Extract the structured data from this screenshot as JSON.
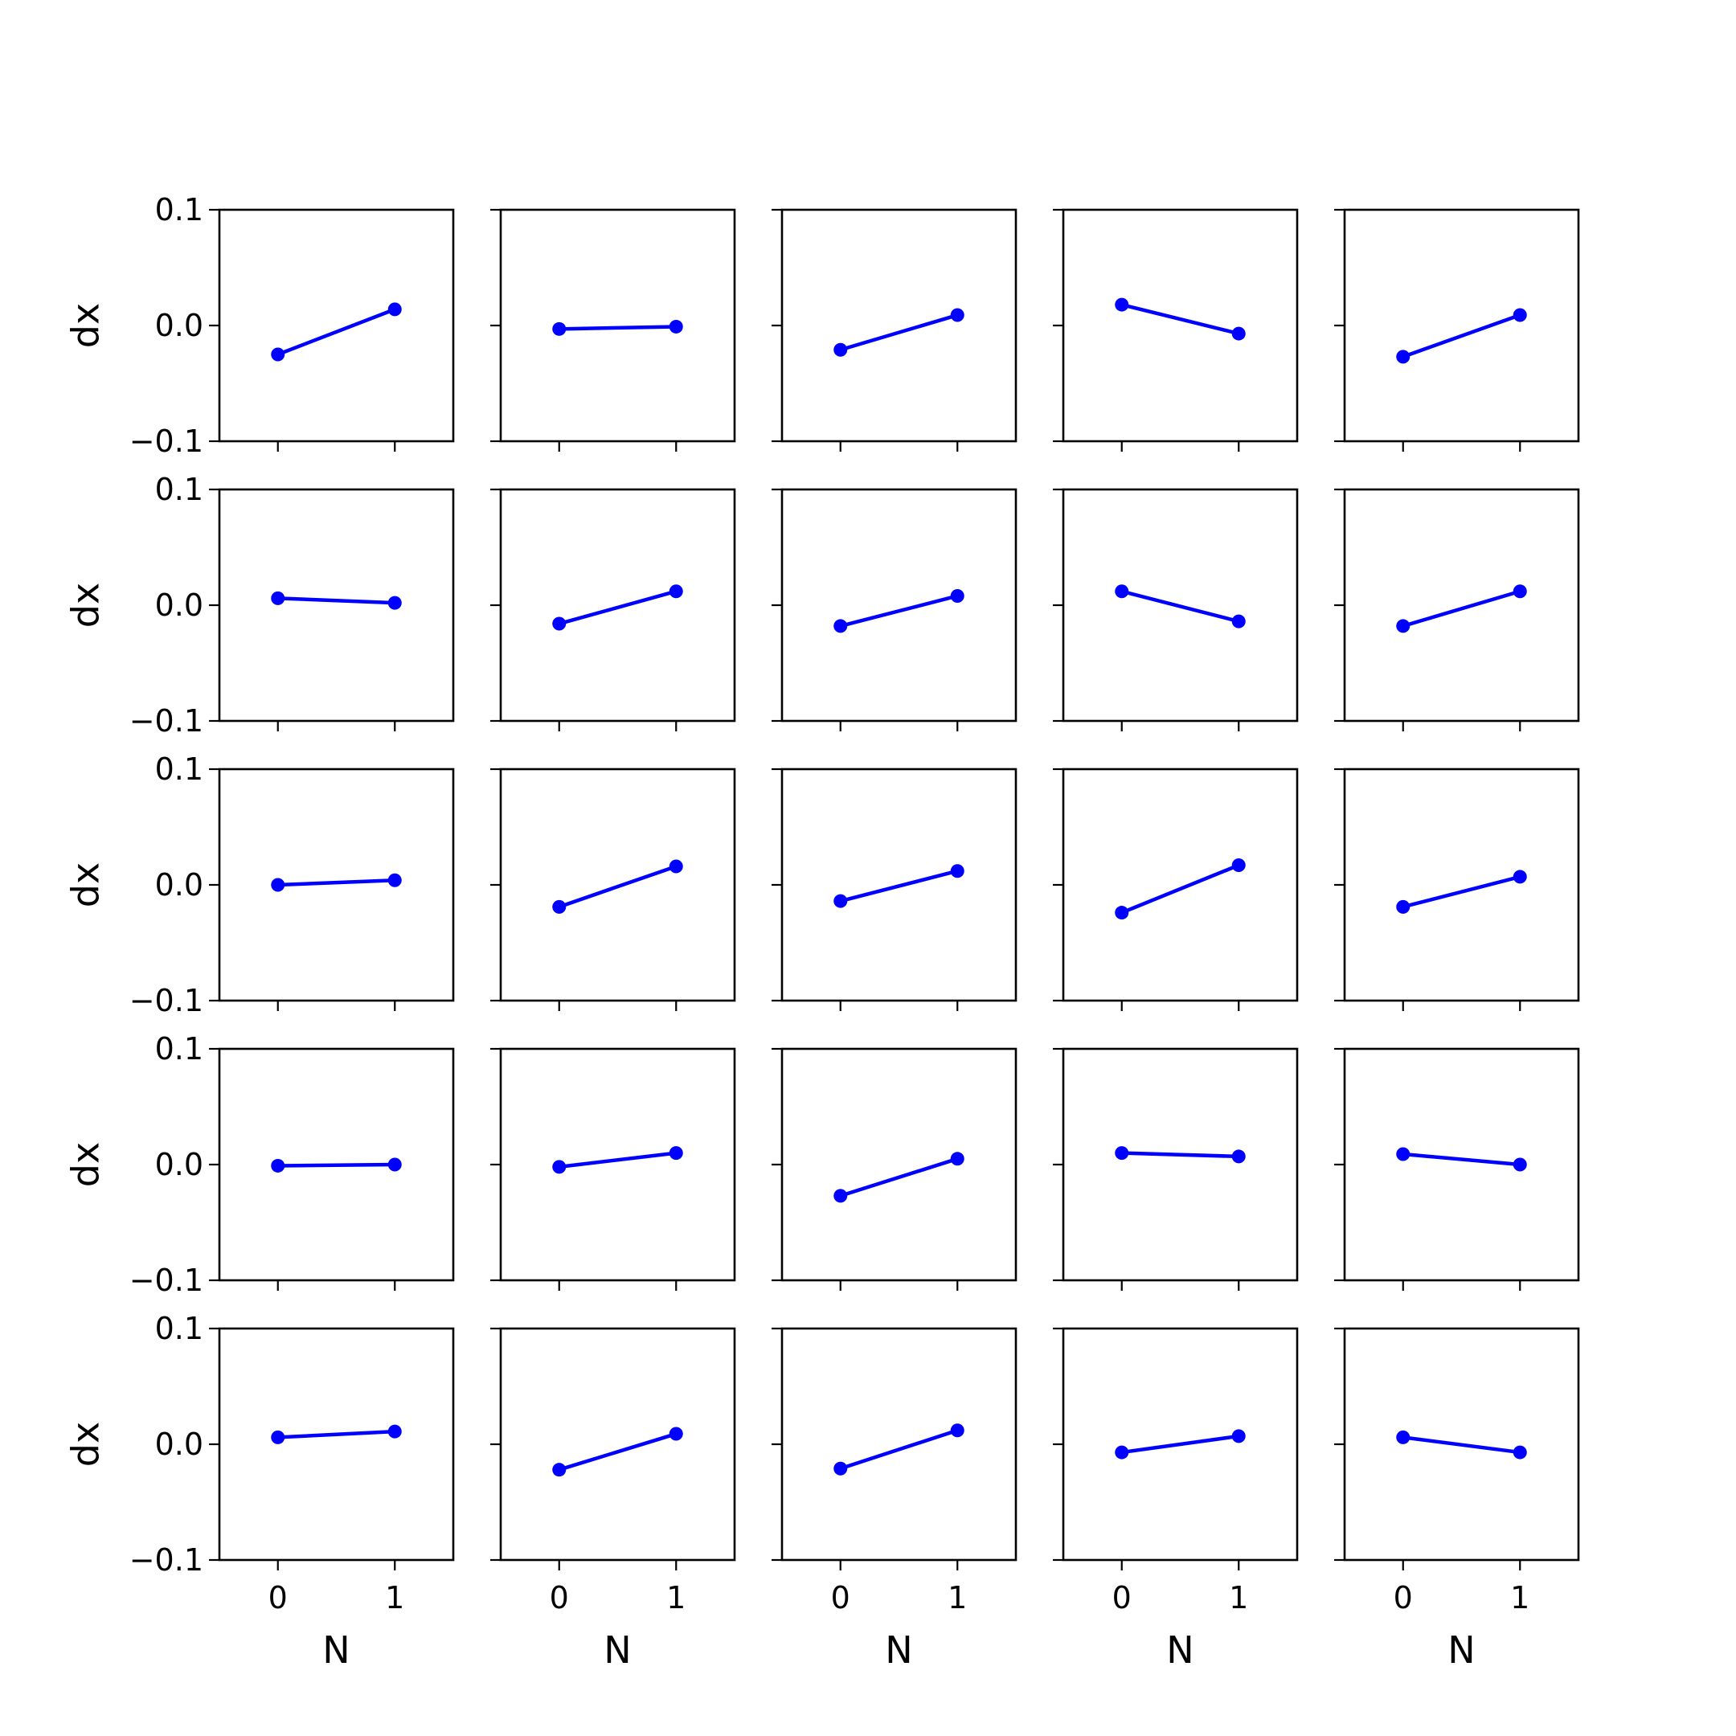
{
  "chart_data": {
    "type": "line",
    "grid": false,
    "rows": 5,
    "cols": 5,
    "xlim": [
      -0.5,
      1.5
    ],
    "ylim": [
      -0.1,
      0.1
    ],
    "x_ticks": [
      {
        "value": 0,
        "label": "0"
      },
      {
        "value": 1,
        "label": "1"
      }
    ],
    "y_ticks": [
      {
        "value": 0.1,
        "label": "0.1"
      },
      {
        "value": 0.0,
        "label": "0.0"
      },
      {
        "value": -0.1,
        "label": "−0.1"
      }
    ],
    "xlabel": "N",
    "ylabel": "dx",
    "line_color": "#0000ff",
    "panels": [
      {
        "x": [
          0,
          1
        ],
        "y": [
          -0.025,
          0.014
        ]
      },
      {
        "x": [
          0,
          1
        ],
        "y": [
          -0.003,
          -0.001
        ]
      },
      {
        "x": [
          0,
          1
        ],
        "y": [
          -0.021,
          0.009
        ]
      },
      {
        "x": [
          0,
          1
        ],
        "y": [
          0.018,
          -0.007
        ]
      },
      {
        "x": [
          0,
          1
        ],
        "y": [
          -0.027,
          0.009
        ]
      },
      {
        "x": [
          0,
          1
        ],
        "y": [
          0.006,
          0.002
        ]
      },
      {
        "x": [
          0,
          1
        ],
        "y": [
          -0.016,
          0.012
        ]
      },
      {
        "x": [
          0,
          1
        ],
        "y": [
          -0.018,
          0.008
        ]
      },
      {
        "x": [
          0,
          1
        ],
        "y": [
          0.012,
          -0.014
        ]
      },
      {
        "x": [
          0,
          1
        ],
        "y": [
          -0.018,
          0.012
        ]
      },
      {
        "x": [
          0,
          1
        ],
        "y": [
          0.0,
          0.004
        ]
      },
      {
        "x": [
          0,
          1
        ],
        "y": [
          -0.019,
          0.016
        ]
      },
      {
        "x": [
          0,
          1
        ],
        "y": [
          -0.014,
          0.012
        ]
      },
      {
        "x": [
          0,
          1
        ],
        "y": [
          -0.024,
          0.017
        ]
      },
      {
        "x": [
          0,
          1
        ],
        "y": [
          -0.019,
          0.007
        ]
      },
      {
        "x": [
          0,
          1
        ],
        "y": [
          -0.001,
          0.0
        ]
      },
      {
        "x": [
          0,
          1
        ],
        "y": [
          -0.002,
          0.01
        ]
      },
      {
        "x": [
          0,
          1
        ],
        "y": [
          -0.027,
          0.005
        ]
      },
      {
        "x": [
          0,
          1
        ],
        "y": [
          0.01,
          0.007
        ]
      },
      {
        "x": [
          0,
          1
        ],
        "y": [
          0.009,
          0.0
        ]
      },
      {
        "x": [
          0,
          1
        ],
        "y": [
          0.006,
          0.011
        ]
      },
      {
        "x": [
          0,
          1
        ],
        "y": [
          -0.022,
          0.009
        ]
      },
      {
        "x": [
          0,
          1
        ],
        "y": [
          -0.021,
          0.012
        ]
      },
      {
        "x": [
          0,
          1
        ],
        "y": [
          -0.007,
          0.007
        ]
      },
      {
        "x": [
          0,
          1
        ],
        "y": [
          0.006,
          -0.007
        ]
      }
    ]
  }
}
